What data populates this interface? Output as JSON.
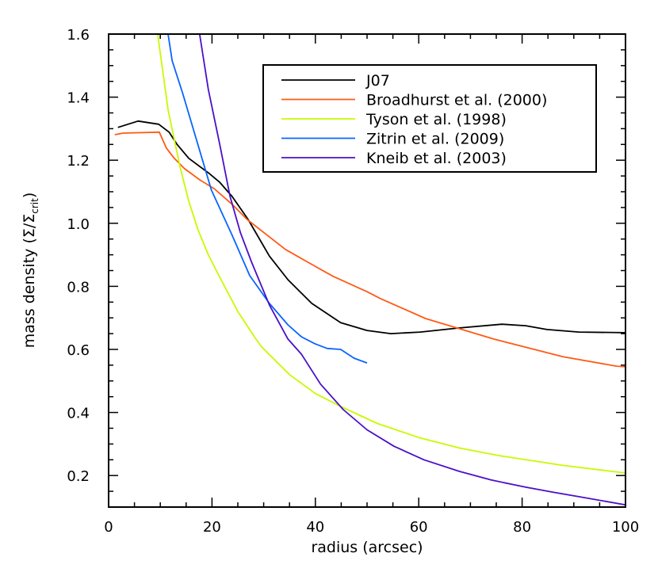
{
  "chart_data": {
    "type": "line",
    "title": "",
    "xlabel": "radius (arcsec)",
    "ylabel": {
      "text": "mass density (Σ/Σ",
      "subscript": "crit",
      "suffix": ")"
    },
    "xlim": [
      0,
      100
    ],
    "ylim": [
      0.1,
      1.6
    ],
    "x_ticks": [
      0,
      20,
      40,
      60,
      80,
      100
    ],
    "x_tick_labels": [
      "0",
      "20",
      "40",
      "60",
      "80",
      "100"
    ],
    "y_ticks": [
      0.2,
      0.4,
      0.6,
      0.8,
      1.0,
      1.2,
      1.4,
      1.6
    ],
    "y_tick_labels": [
      "0.2",
      "0.4",
      "0.6",
      "0.8",
      "1.0",
      "1.2",
      "1.4",
      "1.6"
    ],
    "grid": false,
    "legend_position": "top-right",
    "series": [
      {
        "name": "J07",
        "color": "#000000",
        "x": [
          1.8,
          5.7,
          9.7,
          11.7,
          13.2,
          15.5,
          19.3,
          21.5,
          23.9,
          27.0,
          31.1,
          34.7,
          39.3,
          44.9,
          50.0,
          54.6,
          60.3,
          67.9,
          76.1,
          80.7,
          84.8,
          91.0,
          100
        ],
        "y": [
          1.304,
          1.324,
          1.314,
          1.289,
          1.251,
          1.206,
          1.16,
          1.13,
          1.085,
          1.012,
          0.896,
          0.821,
          0.746,
          0.685,
          0.66,
          0.65,
          0.655,
          0.668,
          0.68,
          0.675,
          0.663,
          0.655,
          0.653
        ]
      },
      {
        "name": "Broadhurst et al. (2000)",
        "color": "#ff5a14",
        "x": [
          1.2,
          2.8,
          9.8,
          11.2,
          12.7,
          14.7,
          17.6,
          20.4,
          23.9,
          26.8,
          30.7,
          34.2,
          38.3,
          43.4,
          50.0,
          52.6,
          61.3,
          74.5,
          87.9,
          98.2,
          100
        ],
        "y": [
          1.281,
          1.286,
          1.289,
          1.238,
          1.206,
          1.173,
          1.138,
          1.11,
          1.06,
          1.012,
          0.962,
          0.917,
          0.879,
          0.832,
          0.783,
          0.761,
          0.698,
          0.633,
          0.577,
          0.547,
          0.545
        ]
      },
      {
        "name": "Tyson et al. (1998)",
        "color": "#c8fa00",
        "x": [
          9.5,
          11.5,
          13.8,
          15.5,
          17.3,
          19.3,
          21.5,
          25.0,
          28.5,
          29.6,
          35.0,
          40.0,
          44.9,
          52.0,
          60.3,
          68.0,
          75.6,
          88.0,
          100
        ],
        "y": [
          1.6,
          1.36,
          1.18,
          1.07,
          0.979,
          0.9,
          0.829,
          0.72,
          0.633,
          0.608,
          0.52,
          0.46,
          0.419,
          0.365,
          0.319,
          0.287,
          0.263,
          0.232,
          0.208
        ]
      },
      {
        "name": "Zitrin et al. (2009)",
        "color": "#0a64ff",
        "x": [
          11.5,
          12.3,
          14.3,
          19.9,
          23.9,
          27.3,
          31.1,
          34.7,
          37.3,
          39.9,
          42.3,
          44.9,
          47.5,
          50.0
        ],
        "y": [
          1.6,
          1.515,
          1.414,
          1.105,
          0.962,
          0.834,
          0.746,
          0.678,
          0.64,
          0.618,
          0.603,
          0.6,
          0.572,
          0.557
        ]
      },
      {
        "name": "Kneib et al. (2003)",
        "color": "#4b0fc8",
        "x": [
          17.6,
          19.3,
          21.5,
          23.5,
          25.5,
          27.6,
          29.6,
          31.1,
          34.7,
          37.3,
          41.0,
          45.4,
          50.0,
          55.2,
          61.0,
          67.9,
          74.0,
          80.7,
          86.0,
          91.0,
          100
        ],
        "y": [
          1.6,
          1.424,
          1.25,
          1.085,
          0.97,
          0.879,
          0.8,
          0.741,
          0.633,
          0.585,
          0.49,
          0.409,
          0.345,
          0.293,
          0.25,
          0.213,
          0.186,
          0.163,
          0.147,
          0.133,
          0.107
        ]
      }
    ]
  }
}
